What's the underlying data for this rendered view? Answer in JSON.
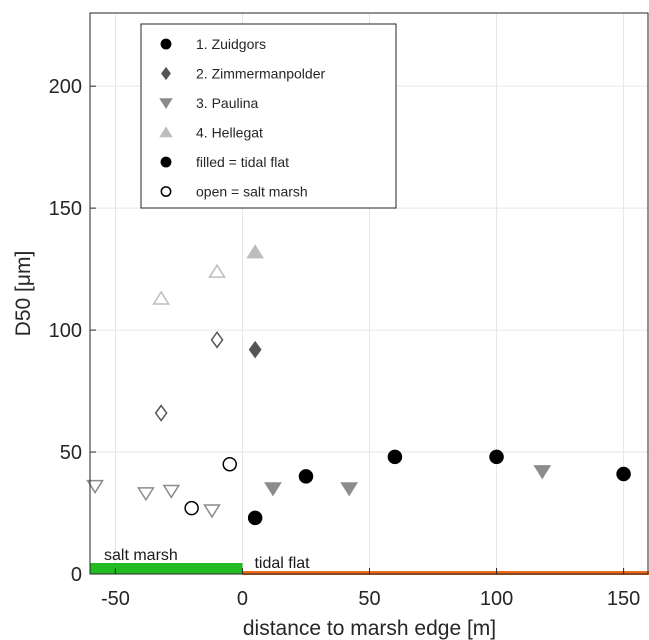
{
  "chart_data": {
    "type": "scatter",
    "xlabel": "distance to marsh edge [m]",
    "ylabel": "D50 [μm]",
    "xlim": [
      -60,
      160
    ],
    "ylim": [
      0,
      230
    ],
    "xticks": [
      -50,
      0,
      50,
      100,
      150
    ],
    "yticks": [
      0,
      50,
      100,
      150,
      200
    ],
    "grid": true,
    "legend_position": "top-left",
    "series": [
      {
        "name": "1. Zuidgors",
        "marker": "circle",
        "color": "#000000",
        "points": [
          {
            "x": -20,
            "y": 27,
            "filled": false
          },
          {
            "x": -5,
            "y": 45,
            "filled": false
          },
          {
            "x": 5,
            "y": 23,
            "filled": true
          },
          {
            "x": 25,
            "y": 40,
            "filled": true
          },
          {
            "x": 60,
            "y": 48,
            "filled": true
          },
          {
            "x": 100,
            "y": 48,
            "filled": true
          },
          {
            "x": 150,
            "y": 41,
            "filled": true
          }
        ]
      },
      {
        "name": "2. Zimmermanpolder",
        "marker": "diamond",
        "color": "#555555",
        "points": [
          {
            "x": -32,
            "y": 66,
            "filled": false
          },
          {
            "x": -10,
            "y": 96,
            "filled": false
          },
          {
            "x": 5,
            "y": 92,
            "filled": true
          }
        ]
      },
      {
        "name": "3. Paulina",
        "marker": "triangle-down",
        "color": "#8c8c8c",
        "points": [
          {
            "x": -58,
            "y": 36,
            "filled": false
          },
          {
            "x": -38,
            "y": 33,
            "filled": false
          },
          {
            "x": -28,
            "y": 34,
            "filled": false
          },
          {
            "x": -12,
            "y": 26,
            "filled": false
          },
          {
            "x": 12,
            "y": 35,
            "filled": true
          },
          {
            "x": 42,
            "y": 35,
            "filled": true
          },
          {
            "x": 118,
            "y": 42,
            "filled": true
          }
        ]
      },
      {
        "name": "4. Hellegat",
        "marker": "triangle-up",
        "color": "#bdbdbd",
        "points": [
          {
            "x": -32,
            "y": 113,
            "filled": false
          },
          {
            "x": -10,
            "y": 124,
            "filled": false
          },
          {
            "x": 5,
            "y": 132,
            "filled": true
          }
        ]
      }
    ],
    "legend_notes": [
      "filled = tidal flat",
      "open = salt marsh"
    ],
    "zones": [
      {
        "label": "salt marsh",
        "from": -60,
        "to": 0,
        "color": "#22bb22"
      },
      {
        "label": "tidal flat",
        "from": 0,
        "to": 160,
        "color": "#ee6a1c"
      }
    ]
  }
}
